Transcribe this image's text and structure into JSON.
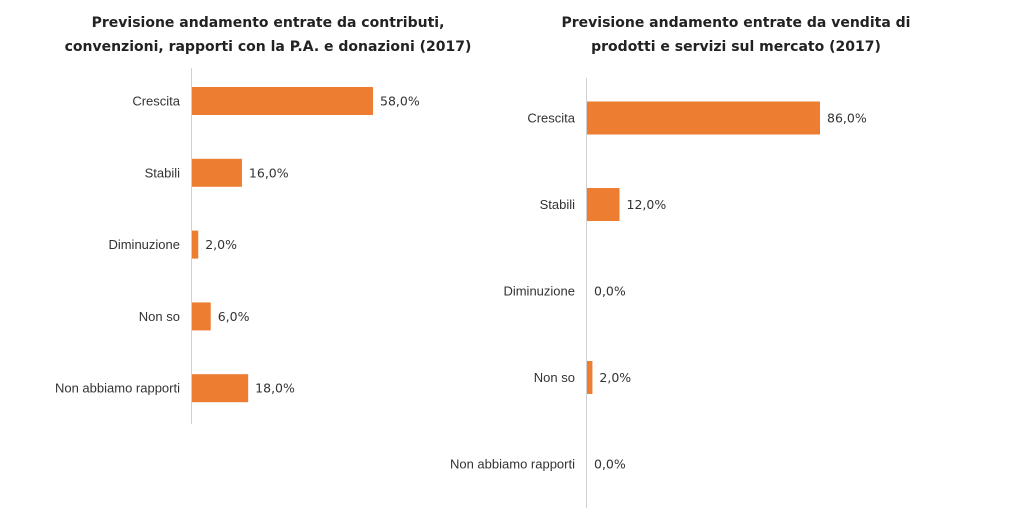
{
  "colors": {
    "bar": "#ED7D31"
  },
  "chart_data": [
    {
      "type": "bar",
      "orientation": "horizontal",
      "title": "Previsione andamento entrate da contributi, convenzioni, rapporti con la P.A. e donazioni (2017)",
      "title_lines": [
        "Previsione andamento entrate da contributi,",
        "convenzioni, rapporti con la P.A. e donazioni (2017)"
      ],
      "categories": [
        "Crescita",
        "Stabili",
        "Diminuzione",
        "Non so",
        "Non abbiamo rapporti"
      ],
      "values": [
        58.0,
        16.0,
        2.0,
        6.0,
        18.0
      ],
      "value_labels": [
        "58,0%",
        "16,0%",
        "2,0%",
        "6,0%",
        "18,0%"
      ],
      "unit": "%"
    },
    {
      "type": "bar",
      "orientation": "horizontal",
      "title": "Previsione andamento entrate da vendita di prodotti e servizi sul mercato (2017)",
      "title_lines": [
        "Previsione andamento entrate da vendita di",
        "prodotti e servizi sul mercato (2017)"
      ],
      "categories": [
        "Crescita",
        "Stabili",
        "Diminuzione",
        "Non so",
        "Non abbiamo rapporti"
      ],
      "values": [
        86.0,
        12.0,
        0.0,
        2.0,
        0.0
      ],
      "value_labels": [
        "86,0%",
        "12,0%",
        "0,0%",
        "2,0%",
        "0,0%"
      ],
      "unit": "%"
    }
  ]
}
